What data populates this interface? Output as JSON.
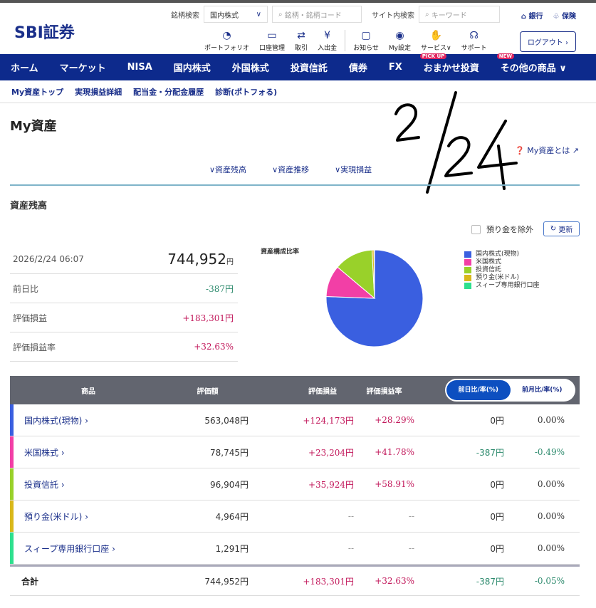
{
  "header": {
    "logo": "SBI証券",
    "stock_search_label": "銘柄検索",
    "market_select": "国内株式",
    "stock_search_placeholder": "銘柄・銘柄コード",
    "site_search_label": "サイト内検索",
    "site_search_placeholder": "キーワード",
    "bank": "銀行",
    "insurance": "保険",
    "logout": "ログアウト",
    "icons": [
      {
        "label": "ポートフォリオ",
        "icon": "pie-icon"
      },
      {
        "label": "口座管理",
        "icon": "card-icon"
      },
      {
        "label": "取引",
        "icon": "exchange-icon"
      },
      {
        "label": "入出金",
        "icon": "yen-icon"
      },
      {
        "label": "お知らせ",
        "icon": "message-icon"
      },
      {
        "label": "My設定",
        "icon": "user-icon"
      },
      {
        "label": "サービス∨",
        "icon": "service-icon"
      },
      {
        "label": "サポート",
        "icon": "headset-icon"
      }
    ]
  },
  "nav": [
    {
      "label": "ホーム"
    },
    {
      "label": "マーケット"
    },
    {
      "label": "NISA"
    },
    {
      "label": "国内株式"
    },
    {
      "label": "外国株式"
    },
    {
      "label": "投資信託"
    },
    {
      "label": "債券"
    },
    {
      "label": "FX"
    },
    {
      "label": "おまかせ投資",
      "badge": "PICK UP"
    },
    {
      "label": "その他の商品 ∨",
      "badge": "NEW"
    }
  ],
  "subnav": [
    "My資産トップ",
    "実現損益詳細",
    "配当金・分配金履歴",
    "診断(ポトフォる)"
  ],
  "page_title": "My資産",
  "help_link": "My資産とは",
  "tabs": [
    "∨資産残高",
    "∨資産推移",
    "∨実現損益"
  ],
  "section_title": "資産残高",
  "exclude_deposit": "預り金を除外",
  "refresh": "更新",
  "summary": {
    "datetime": "2026/2/24 06:07",
    "total": "744,952",
    "yen": "円",
    "rows": [
      {
        "label": "前日比",
        "value": "-387円"
      },
      {
        "label": "評価損益",
        "value": "+183,301円"
      },
      {
        "label": "評価損益率",
        "value": "+32.63%"
      }
    ]
  },
  "chart_data": {
    "type": "pie",
    "title": "資産構成比率",
    "legend_position": "right",
    "categories": [
      "国内株式(現物)",
      "米国株式",
      "投資信託",
      "預り金(米ドル)",
      "スィープ専用銀行口座"
    ],
    "values": [
      563048,
      78745,
      96904,
      4964,
      1291
    ],
    "colors": [
      "#3a5fe0",
      "#f23fa6",
      "#99d12a",
      "#d9b81a",
      "#2ee08e"
    ]
  },
  "table": {
    "headers": [
      "商品",
      "評価額",
      "評価損益",
      "評価損益率"
    ],
    "toggle": [
      "前日比/率(%)",
      "前月比/率(%)"
    ],
    "rows": [
      {
        "name": "国内株式(現物)",
        "value": "563,048円",
        "pl": "+124,173円",
        "plr": "+28.29%",
        "d": "0円",
        "dr": "0.00%",
        "color": "#3a5fe0"
      },
      {
        "name": "米国株式",
        "value": "78,745円",
        "pl": "+23,204円",
        "plr": "+41.78%",
        "d": "-387円",
        "dr": "-0.49%",
        "color": "#f23fa6"
      },
      {
        "name": "投資信託",
        "value": "96,904円",
        "pl": "+35,924円",
        "plr": "+58.91%",
        "d": "0円",
        "dr": "0.00%",
        "color": "#99d12a"
      },
      {
        "name": "預り金(米ドル)",
        "value": "4,964円",
        "pl": "--",
        "plr": "--",
        "d": "0円",
        "dr": "0.00%",
        "color": "#d9b81a"
      },
      {
        "name": "スィープ専用銀行口座",
        "value": "1,291円",
        "pl": "--",
        "plr": "--",
        "d": "0円",
        "dr": "0.00%",
        "color": "#2ee08e"
      }
    ],
    "total": {
      "name": "合計",
      "value": "744,952円",
      "pl": "+183,301円",
      "plr": "+32.63%",
      "d": "-387円",
      "dr": "-0.05%"
    }
  },
  "handwritten_note": "2/24"
}
